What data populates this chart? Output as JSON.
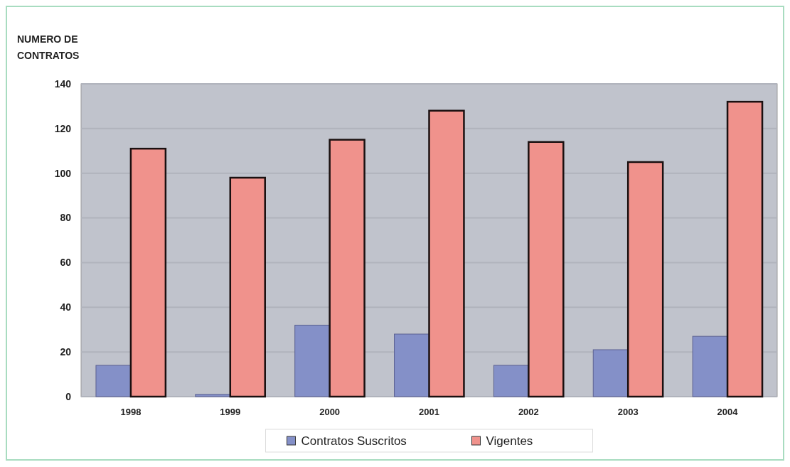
{
  "chart_data": {
    "type": "bar",
    "ylabel": "NUMERO DE CONTRATOS",
    "categories": [
      "1998",
      "1999",
      "2000",
      "2001",
      "2002",
      "2003",
      "2004"
    ],
    "series": [
      {
        "name": "Contratos Suscritos",
        "color": "#8490c8",
        "values": [
          14,
          1,
          32,
          28,
          14,
          21,
          27
        ]
      },
      {
        "name": "Vigentes",
        "color": "#f0928c",
        "values": [
          111,
          98,
          115,
          128,
          114,
          105,
          132
        ]
      }
    ],
    "ylim": [
      0,
      140
    ],
    "yticks": [
      0,
      20,
      40,
      60,
      80,
      100,
      120,
      140
    ],
    "grid": "y",
    "legend": "bottom"
  }
}
